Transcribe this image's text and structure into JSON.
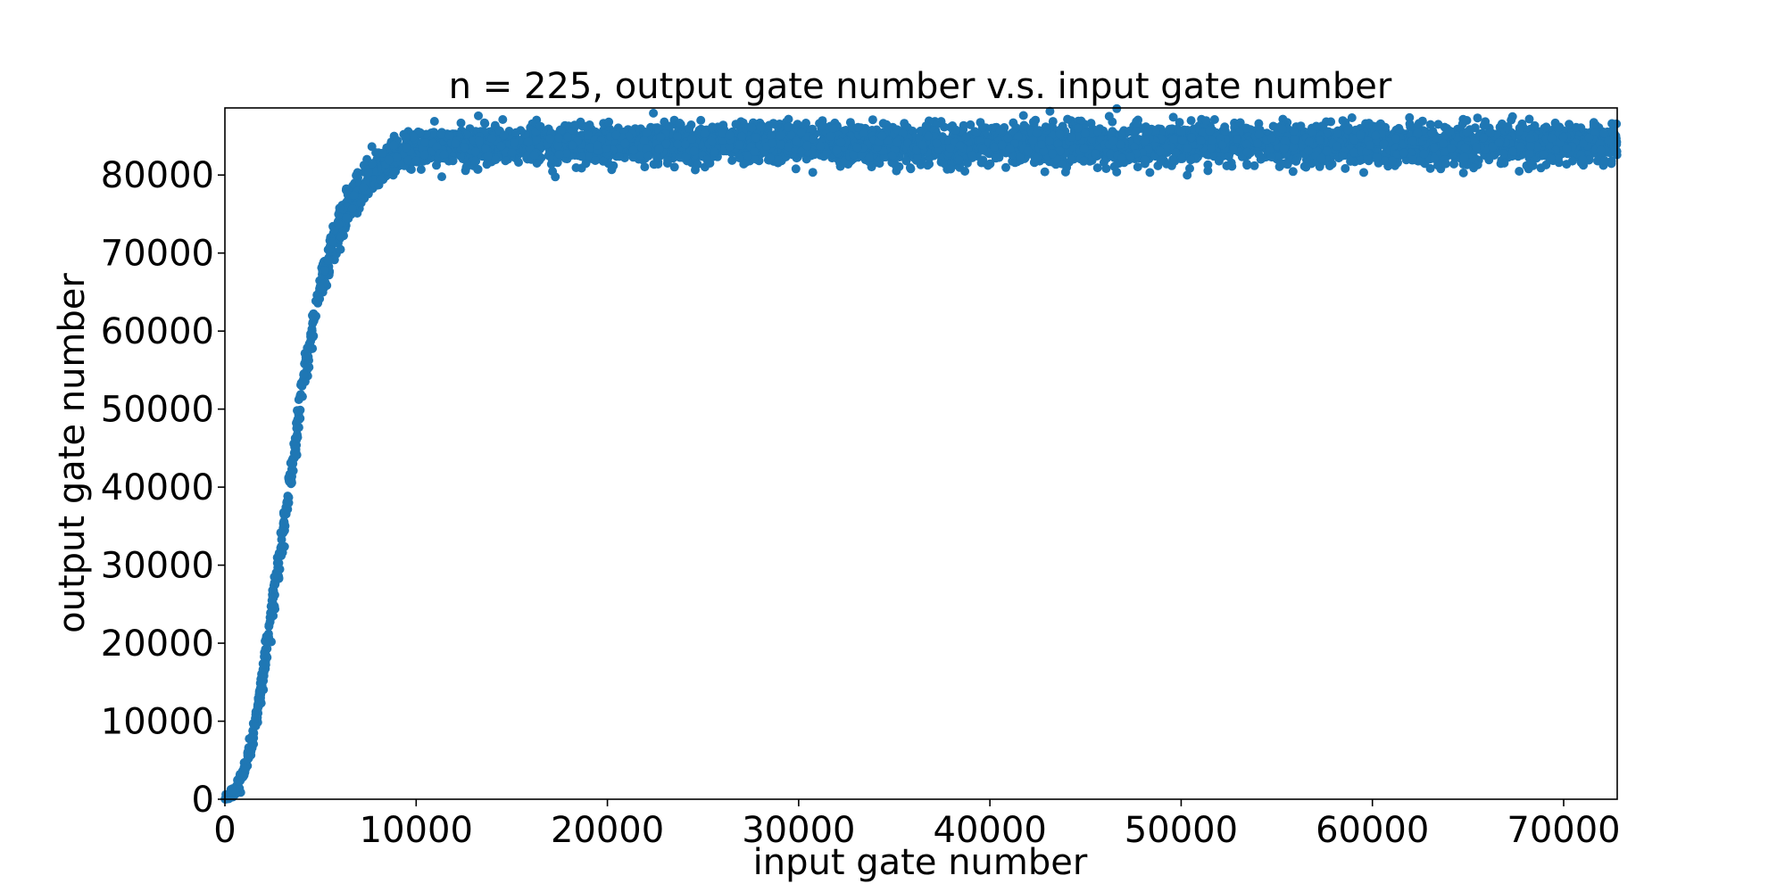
{
  "chart_data": {
    "type": "scatter",
    "title": "n = 225, output gate number v.s. input gate number",
    "xlabel": "input gate number",
    "ylabel": "output gate number",
    "xlim": [
      0,
      72800
    ],
    "ylim": [
      0,
      88600
    ],
    "xticks": [
      0,
      10000,
      20000,
      30000,
      40000,
      50000,
      60000,
      70000
    ],
    "yticks": [
      0,
      10000,
      20000,
      30000,
      40000,
      50000,
      60000,
      70000,
      80000
    ],
    "xtick_labels": [
      "0",
      "10000",
      "20000",
      "30000",
      "40000",
      "50000",
      "60000",
      "70000"
    ],
    "ytick_labels": [
      "0",
      "10000",
      "20000",
      "30000",
      "40000",
      "50000",
      "60000",
      "70000",
      "80000"
    ],
    "grid": false,
    "legend": "none",
    "series": [
      {
        "color": "#1f77b4",
        "trend": {
          "x": [
            0,
            500,
            1000,
            1500,
            2000,
            2500,
            3000,
            3500,
            4000,
            4500,
            5000,
            5500,
            6000,
            6500,
            7000,
            7500,
            8000,
            8500,
            9000,
            9500,
            10000,
            11000,
            12000,
            14000,
            20000,
            30000,
            40000,
            50000,
            60000,
            72800
          ],
          "y": [
            0,
            1000,
            3500,
            8500,
            16000,
            25000,
            33500,
            42500,
            51500,
            59000,
            65500,
            70000,
            73500,
            76000,
            78000,
            79500,
            80500,
            81500,
            82500,
            83000,
            83300,
            83500,
            83700,
            83800,
            83900,
            84000,
            83800,
            84000,
            84000,
            84000
          ]
        },
        "spread": {
          "x": [
            0,
            2000,
            5000,
            8000,
            10000,
            72800
          ],
          "y": [
            300,
            1800,
            2500,
            2200,
            2200,
            2200
          ]
        },
        "x_range": [
          0,
          72800
        ]
      }
    ]
  }
}
